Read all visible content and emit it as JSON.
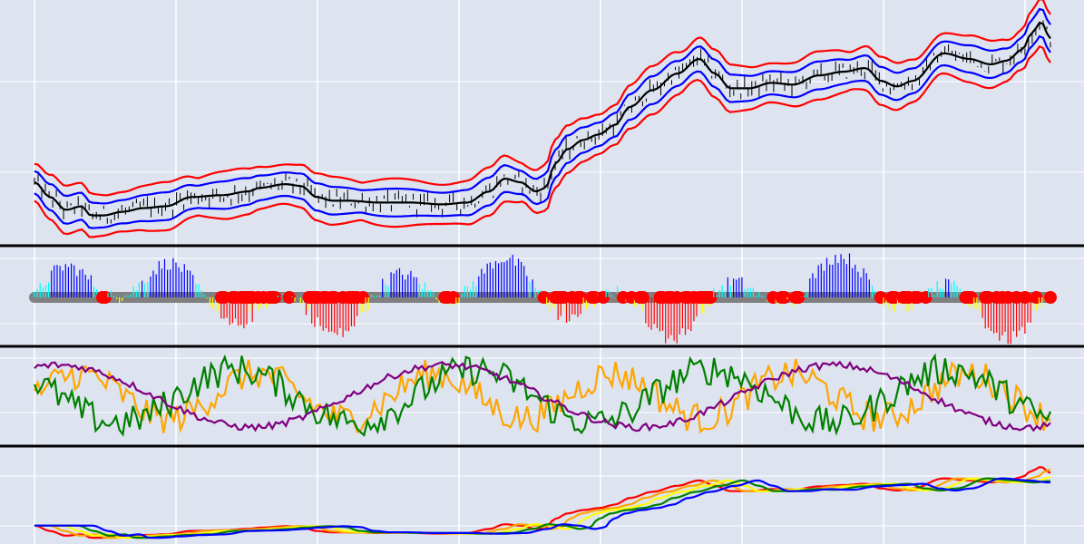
{
  "chart_data": [
    {
      "type": "line",
      "panel": "price",
      "title": "",
      "xlabel": "",
      "ylabel": "",
      "grid": true,
      "legend": "none",
      "x_range": [
        0,
        280
      ],
      "y_range": [
        0,
        100
      ],
      "colors": {
        "price": "#000000",
        "ma": "#000000",
        "inner_band": "#0000ff",
        "outer_band": "#ff0000"
      },
      "series": [
        {
          "role": "ma",
          "knots": [
            [
              0,
              40
            ],
            [
              5,
              32
            ],
            [
              10,
              25
            ],
            [
              15,
              27
            ],
            [
              18,
              22
            ],
            [
              22,
              22
            ],
            [
              28,
              24
            ],
            [
              35,
              26
            ],
            [
              42,
              27
            ],
            [
              50,
              32
            ],
            [
              60,
              33
            ],
            [
              68,
              35
            ],
            [
              72,
              37
            ],
            [
              80,
              39
            ],
            [
              85,
              38
            ],
            [
              90,
              32
            ],
            [
              95,
              30
            ],
            [
              100,
              30
            ],
            [
              110,
              29
            ],
            [
              120,
              29
            ],
            [
              130,
              28
            ],
            [
              138,
              29
            ],
            [
              145,
              35
            ],
            [
              150,
              42
            ],
            [
              155,
              40
            ],
            [
              160,
              35
            ],
            [
              163,
              37
            ],
            [
              166,
              50
            ],
            [
              170,
              58
            ],
            [
              175,
              63
            ],
            [
              180,
              66
            ],
            [
              185,
              71
            ],
            [
              190,
              81
            ],
            [
              197,
              90
            ],
            [
              205,
              99
            ],
            [
              212,
              107
            ],
            [
              217,
              99
            ],
            [
              222,
              91
            ],
            [
              228,
              91
            ],
            [
              235,
              94
            ],
            [
              242,
              93
            ],
            [
              250,
              98
            ],
            [
              258,
              100
            ],
            [
              265,
              102
            ],
            [
              270,
              95
            ],
            [
              275,
              92
            ],
            [
              280,
              95
            ],
            [
              290,
              110
            ],
            [
              298,
              107
            ],
            [
              305,
              104
            ],
            [
              310,
              106
            ],
            [
              315,
              112
            ],
            [
              318,
              121
            ],
            [
              321,
              127
            ],
            [
              324,
              118
            ]
          ]
        },
        {
          "role": "inner_band_upper",
          "offset": 6
        },
        {
          "role": "inner_band_lower",
          "offset": -6
        },
        {
          "role": "outer_band_upper",
          "offset": 10
        },
        {
          "role": "outer_band_lower",
          "offset": -10
        }
      ]
    },
    {
      "type": "bar",
      "panel": "histogram",
      "title": "",
      "legend": "none",
      "colors": {
        "positive_light": "#00ffff",
        "positive_dark": "#0000ff",
        "negative_light": "#ffff00",
        "negative_dark": "#ff0000",
        "zero_marker": "#ff0000",
        "zero_line": "#808080"
      },
      "zero_level": 0
    },
    {
      "type": "line",
      "panel": "oscillators",
      "title": "",
      "legend": "none",
      "colors": [
        "#ffa500",
        "#008000",
        "#800080"
      ]
    },
    {
      "type": "line",
      "panel": "moving-averages",
      "title": "",
      "legend": "none",
      "colors": [
        "#ff0000",
        "#ffa500",
        "#ffff00",
        "#008000",
        "#0000ff"
      ]
    }
  ]
}
